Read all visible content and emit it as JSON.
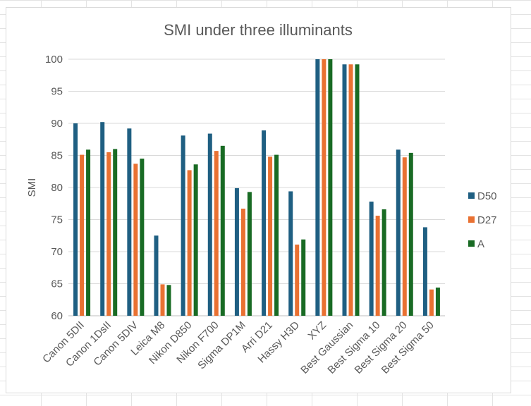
{
  "chart_data": {
    "type": "bar",
    "title": "SMI under three illuminants",
    "xlabel": "",
    "ylabel": "SMI",
    "ylim": [
      60,
      100
    ],
    "yticks": [
      60,
      65,
      70,
      75,
      80,
      85,
      90,
      95,
      100
    ],
    "grid": true,
    "legend_position": "right",
    "categories": [
      "Canon 5DII",
      "Canon 1DsII",
      "Canon 5DIV",
      "Leica M8",
      "Nikon D850",
      "Nikon F700",
      "Sigma DP1M",
      "Arri D21",
      "Hassy H3D",
      "XYZ",
      "Best Gaussian",
      "Best Sigma 10",
      "Best Sigma 20",
      "Best Sigma 50"
    ],
    "series": [
      {
        "name": "D50",
        "color": "#1f5f82",
        "values": [
          90.0,
          90.2,
          89.2,
          72.5,
          88.1,
          88.4,
          79.9,
          88.9,
          79.4,
          100,
          99.2,
          77.8,
          85.9,
          73.8
        ]
      },
      {
        "name": "D27",
        "color": "#e97132",
        "values": [
          85.1,
          85.5,
          83.7,
          64.9,
          82.7,
          85.7,
          76.7,
          84.8,
          71.1,
          100,
          99.2,
          75.6,
          84.7,
          64.1
        ]
      },
      {
        "name": "A",
        "color": "#196b24",
        "values": [
          85.9,
          86.0,
          84.5,
          64.8,
          83.6,
          86.5,
          79.3,
          85.1,
          71.9,
          100,
          99.2,
          76.6,
          85.4,
          64.4
        ]
      }
    ]
  }
}
